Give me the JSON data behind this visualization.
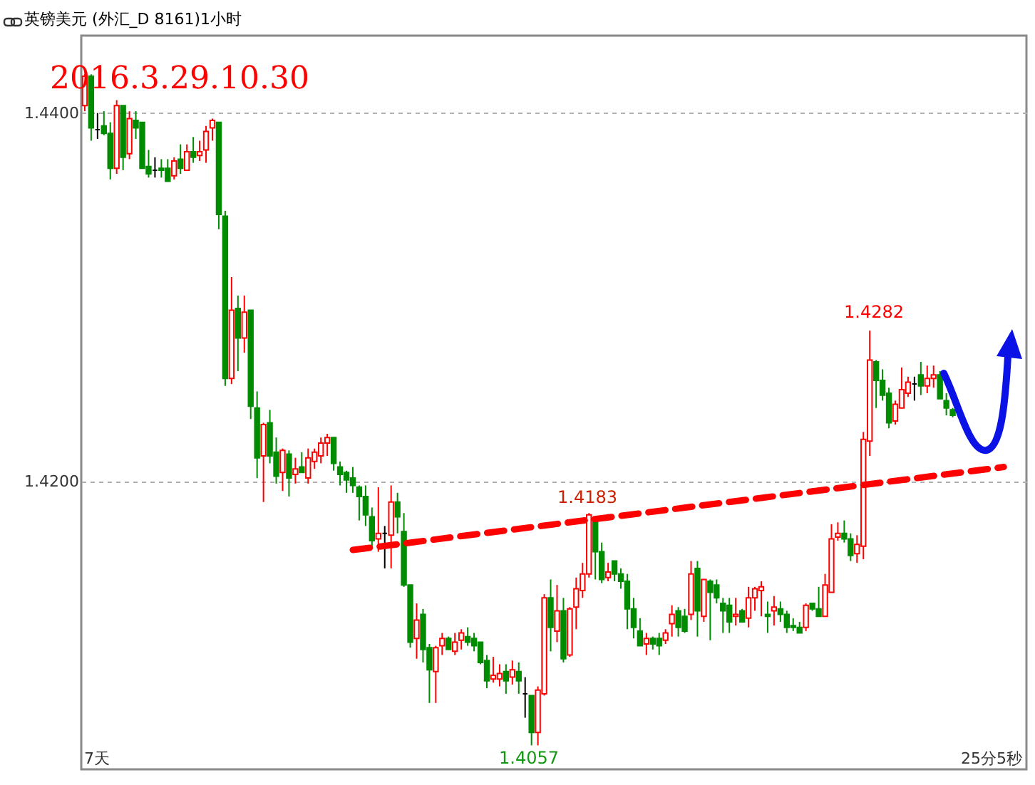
{
  "chart_data": {
    "type": "candlestick",
    "title": "英镑美元 (外汇_D 8161)1小时",
    "categories": [
      null,
      null,
      null,
      null,
      null,
      null,
      null,
      null,
      null,
      null,
      null,
      null,
      null,
      null,
      null,
      null,
      null,
      null,
      null,
      null,
      null,
      null,
      null,
      null,
      null,
      null,
      null,
      null,
      null,
      null,
      null,
      null,
      null,
      null,
      null,
      null,
      null,
      null,
      null,
      null,
      null,
      null,
      null,
      null,
      null,
      null,
      null,
      null,
      null,
      null,
      null,
      null,
      null,
      null,
      null,
      null,
      null,
      null,
      null,
      null,
      null,
      null,
      null,
      null,
      null,
      null,
      null,
      null,
      null,
      null,
      null,
      null,
      null,
      null,
      null,
      null,
      null,
      null,
      null,
      null,
      null,
      null,
      null,
      null,
      null,
      null,
      null,
      null,
      null,
      null,
      null,
      null,
      null,
      null,
      null,
      null,
      null,
      null,
      null,
      null,
      null,
      null,
      null,
      null,
      null,
      null,
      null,
      null,
      null,
      null,
      null,
      null,
      null,
      null,
      null,
      null,
      null,
      null,
      null,
      null,
      null,
      null,
      null,
      null,
      null,
      null,
      null,
      null,
      null,
      null,
      null,
      null,
      null,
      null,
      null,
      null,
      null,
      null,
      null,
      null,
      null,
      null,
      null,
      null,
      null,
      null,
      null,
      null
    ],
    "ohlc": [
      [
        1.4404,
        1.4421,
        1.4401,
        1.442
      ],
      [
        1.442,
        1.4421,
        1.4385,
        1.4392
      ],
      [
        1.4391,
        1.44,
        1.4386,
        1.4391
      ],
      [
        1.4393,
        1.4401,
        1.4388,
        1.4389
      ],
      [
        1.4389,
        1.4395,
        1.4364,
        1.437
      ],
      [
        1.437,
        1.4407,
        1.4367,
        1.4404
      ],
      [
        1.4404,
        1.4404,
        1.4369,
        1.4376
      ],
      [
        1.4378,
        1.4401,
        1.4375,
        1.4397
      ],
      [
        1.4396,
        1.4401,
        1.4386,
        1.4392
      ],
      [
        1.4395,
        1.4395,
        1.437,
        1.437
      ],
      [
        1.4371,
        1.438,
        1.4365,
        1.4367
      ],
      [
        1.4369,
        1.4376,
        1.4365,
        1.4369
      ],
      [
        1.437,
        1.4375,
        1.4365,
        1.4369
      ],
      [
        1.437,
        1.4375,
        1.4363,
        1.4363
      ],
      [
        1.4366,
        1.4376,
        1.4364,
        1.4374
      ],
      [
        1.4375,
        1.4383,
        1.4367,
        1.437
      ],
      [
        1.4369,
        1.4383,
        1.4369,
        1.4379
      ],
      [
        1.4379,
        1.4387,
        1.4373,
        1.4376
      ],
      [
        1.4377,
        1.4385,
        1.4374,
        1.4379
      ],
      [
        1.438,
        1.4393,
        1.4373,
        1.439
      ],
      [
        1.4392,
        1.4397,
        1.4385,
        1.4396
      ],
      [
        1.4395,
        1.4395,
        1.4337,
        1.4345
      ],
      [
        1.4344,
        1.4347,
        1.4252,
        1.4256
      ],
      [
        1.4256,
        1.4311,
        1.4253,
        1.4293
      ],
      [
        1.4294,
        1.4301,
        1.426,
        1.4278
      ],
      [
        1.4278,
        1.4301,
        1.427,
        1.4292
      ],
      [
        1.4293,
        1.4293,
        1.4234,
        1.4241
      ],
      [
        1.424,
        1.4249,
        1.4202,
        1.4213
      ],
      [
        1.4214,
        1.4232,
        1.4189,
        1.4231
      ],
      [
        1.4232,
        1.4239,
        1.421,
        1.4214
      ],
      [
        1.4216,
        1.4224,
        1.4199,
        1.4203
      ],
      [
        1.4205,
        1.4218,
        1.4195,
        1.4217
      ],
      [
        1.4215,
        1.4217,
        1.4192,
        1.4202
      ],
      [
        1.4204,
        1.4213,
        1.4199,
        1.4207
      ],
      [
        1.4208,
        1.4216,
        1.4205,
        1.4205
      ],
      [
        1.4202,
        1.4218,
        1.4199,
        1.4213
      ],
      [
        1.4211,
        1.4218,
        1.4207,
        1.4216
      ],
      [
        1.4214,
        1.4224,
        1.421,
        1.4221
      ],
      [
        1.4221,
        1.4226,
        1.4214,
        1.4224
      ],
      [
        1.4224,
        1.4224,
        1.4206,
        1.421
      ],
      [
        1.4208,
        1.4211,
        1.4198,
        1.4204
      ],
      [
        1.4205,
        1.4206,
        1.4194,
        1.4201
      ],
      [
        1.4202,
        1.4208,
        1.4194,
        1.4198
      ],
      [
        1.4197,
        1.4198,
        1.4179,
        1.4192
      ],
      [
        1.4192,
        1.4198,
        1.4176,
        1.4182
      ],
      [
        1.4181,
        1.4186,
        1.4164,
        1.4168
      ],
      [
        1.4169,
        1.4197,
        1.4162,
        1.4172
      ],
      [
        1.4172,
        1.4176,
        1.4153,
        1.4172
      ],
      [
        1.4171,
        1.4198,
        1.4153,
        1.4189
      ],
      [
        1.4189,
        1.4194,
        1.4172,
        1.4181
      ],
      [
        1.4173,
        1.4183,
        1.4143,
        1.4144
      ],
      [
        1.4144,
        1.4144,
        1.411,
        1.4113
      ],
      [
        1.4115,
        1.4134,
        1.4104,
        1.4125
      ],
      [
        1.4128,
        1.4131,
        1.4102,
        1.4109
      ],
      [
        1.411,
        1.4112,
        1.408,
        1.4098
      ],
      [
        1.4097,
        1.4111,
        1.408,
        1.411
      ],
      [
        1.4111,
        1.4118,
        1.4106,
        1.4115
      ],
      [
        1.4115,
        1.4116,
        1.4109,
        1.4109
      ],
      [
        1.4108,
        1.4118,
        1.4106,
        1.4113
      ],
      [
        1.4114,
        1.412,
        1.4109,
        1.4118
      ],
      [
        1.4116,
        1.4121,
        1.4111,
        1.4113
      ],
      [
        1.4115,
        1.4118,
        1.4108,
        1.4111
      ],
      [
        1.4113,
        1.4113,
        1.4101,
        1.4102
      ],
      [
        1.4103,
        1.4106,
        1.4088,
        1.4092
      ],
      [
        1.4093,
        1.4105,
        1.4091,
        1.4095
      ],
      [
        1.4093,
        1.4101,
        1.4089,
        1.4096
      ],
      [
        1.4097,
        1.4101,
        1.4085,
        1.4092
      ],
      [
        1.4094,
        1.4103,
        1.409,
        1.4098
      ],
      [
        1.4097,
        1.4102,
        1.4085,
        1.4092
      ],
      [
        1.4085,
        1.4094,
        1.4072,
        1.4085
      ],
      [
        1.4084,
        1.4084,
        1.4057,
        1.4064
      ],
      [
        1.4064,
        1.4089,
        1.4057,
        1.4087
      ],
      [
        1.4085,
        1.4139,
        1.4084,
        1.4137
      ],
      [
        1.4137,
        1.4147,
        1.4108,
        1.4121
      ],
      [
        1.4119,
        1.4144,
        1.4113,
        1.413
      ],
      [
        1.413,
        1.4137,
        1.4102,
        1.4104
      ],
      [
        1.4106,
        1.4132,
        1.4105,
        1.4131
      ],
      [
        1.4132,
        1.4148,
        1.412,
        1.4142
      ],
      [
        1.4141,
        1.4156,
        1.4137,
        1.415
      ],
      [
        1.415,
        1.4183,
        1.4148,
        1.4182
      ],
      [
        1.4179,
        1.4181,
        1.4147,
        1.4162
      ],
      [
        1.4162,
        1.4167,
        1.4145,
        1.4147
      ],
      [
        1.4148,
        1.4156,
        1.4146,
        1.4151
      ],
      [
        1.4157,
        1.4157,
        1.4146,
        1.415
      ],
      [
        1.415,
        1.4153,
        1.4142,
        1.4146
      ],
      [
        1.4146,
        1.415,
        1.412,
        1.4131
      ],
      [
        1.4131,
        1.4137,
        1.4115,
        1.4121
      ],
      [
        1.4119,
        1.4126,
        1.4111,
        1.4111
      ],
      [
        1.4112,
        1.4118,
        1.4106,
        1.4115
      ],
      [
        1.4115,
        1.4116,
        1.4109,
        1.4112
      ],
      [
        1.4115,
        1.4118,
        1.4106,
        1.4111
      ],
      [
        1.4114,
        1.412,
        1.4112,
        1.4118
      ],
      [
        1.4123,
        1.4133,
        1.4116,
        1.4128
      ],
      [
        1.413,
        1.4132,
        1.4116,
        1.4121
      ],
      [
        1.4127,
        1.4131,
        1.4118,
        1.4119
      ],
      [
        1.4128,
        1.4157,
        1.4125,
        1.415
      ],
      [
        1.4153,
        1.4157,
        1.4116,
        1.413
      ],
      [
        1.4127,
        1.4147,
        1.4124,
        1.4147
      ],
      [
        1.4146,
        1.4147,
        1.4114,
        1.414
      ],
      [
        1.4144,
        1.4147,
        1.4134,
        1.4137
      ],
      [
        1.4134,
        1.4137,
        1.4118,
        1.413
      ],
      [
        1.4133,
        1.4137,
        1.4118,
        1.4124
      ],
      [
        1.4127,
        1.4137,
        1.4122,
        1.4128
      ],
      [
        1.413,
        1.4131,
        1.4124,
        1.4124
      ],
      [
        1.4126,
        1.4143,
        1.4121,
        1.4137
      ],
      [
        1.4137,
        1.4143,
        1.413,
        1.4142
      ],
      [
        1.4141,
        1.4146,
        1.4127,
        1.4143
      ],
      [
        1.4128,
        1.4135,
        1.4118,
        1.4127
      ],
      [
        1.413,
        1.4138,
        1.4122,
        1.4132
      ],
      [
        1.4131,
        1.4135,
        1.4124,
        1.4128
      ],
      [
        1.4128,
        1.413,
        1.4118,
        1.4121
      ],
      [
        1.4122,
        1.4126,
        1.4119,
        1.4121
      ],
      [
        1.4121,
        1.4124,
        1.4118,
        1.4118
      ],
      [
        1.4121,
        1.4134,
        1.4119,
        1.4133
      ],
      [
        1.4134,
        1.4134,
        1.413,
        1.4131
      ],
      [
        1.4131,
        1.4143,
        1.4127,
        1.4127
      ],
      [
        1.4127,
        1.415,
        1.4127,
        1.4144
      ],
      [
        1.414,
        1.4177,
        1.414,
        1.4169
      ],
      [
        1.417,
        1.4178,
        1.4168,
        1.4172
      ],
      [
        1.4172,
        1.4179,
        1.4167,
        1.4169
      ],
      [
        1.4169,
        1.4172,
        1.4157,
        1.416
      ],
      [
        1.4161,
        1.4171,
        1.4156,
        1.4166
      ],
      [
        1.4165,
        1.4227,
        1.4158,
        1.4223
      ],
      [
        1.4222,
        1.4282,
        1.4214,
        1.4266
      ],
      [
        1.4265,
        1.4266,
        1.424,
        1.4255
      ],
      [
        1.4255,
        1.4261,
        1.4244,
        1.4247
      ],
      [
        1.4248,
        1.4251,
        1.4229,
        1.4232
      ],
      [
        1.4233,
        1.4244,
        1.4231,
        1.4242
      ],
      [
        1.424,
        1.4262,
        1.424,
        1.425
      ],
      [
        1.4248,
        1.4257,
        1.4246,
        1.4254
      ],
      [
        1.4253,
        1.4257,
        1.4244,
        1.4253
      ],
      [
        1.4258,
        1.4265,
        1.4247,
        1.4252
      ],
      [
        1.4252,
        1.4263,
        1.4248,
        1.4256
      ],
      [
        1.4256,
        1.4263,
        1.4251,
        1.4258
      ],
      [
        1.4258,
        1.426,
        1.4245,
        1.4245
      ],
      [
        1.4244,
        1.4248,
        1.4236,
        1.424
      ],
      [
        1.4239,
        1.424,
        1.4235,
        1.4236
      ],
      null,
      null,
      null,
      null,
      null,
      null,
      null,
      null,
      null,
      null,
      null
    ],
    "colors": [
      "#ff0000",
      "#008c00",
      "#000000",
      "#008c00",
      "#008c00",
      "#ff0000",
      "#008c00",
      "#ff0000",
      "#008c00",
      "#008c00",
      "#008c00",
      "#000000",
      "#008c00",
      "#008c00",
      "#ff0000",
      "#008c00",
      "#ff0000",
      "#008c00",
      "#ff0000",
      "#ff0000",
      "#ff0000",
      "#008c00",
      "#008c00",
      "#ff0000",
      "#008c00",
      "#ff0000",
      "#008c00",
      "#008c00",
      "#ff0000",
      "#008c00",
      "#008c00",
      "#ff0000",
      "#008c00",
      "#ff0000",
      "#008c00",
      "#ff0000",
      "#ff0000",
      "#ff0000",
      "#ff0000",
      "#008c00",
      "#008c00",
      "#008c00",
      "#008c00",
      "#008c00",
      "#008c00",
      "#008c00",
      "#ff0000",
      "#000000",
      "#ff0000",
      "#008c00",
      "#008c00",
      "#008c00",
      "#ff0000",
      "#008c00",
      "#008c00",
      "#ff0000",
      "#ff0000",
      "#008c00",
      "#ff0000",
      "#ff0000",
      "#008c00",
      "#008c00",
      "#008c00",
      "#008c00",
      "#ff0000",
      "#ff0000",
      "#008c00",
      "#ff0000",
      "#008c00",
      "#000000",
      "#008c00",
      "#ff0000",
      "#ff0000",
      "#008c00",
      "#ff0000",
      "#008c00",
      "#ff0000",
      "#ff0000",
      "#ff0000",
      "#ff0000",
      "#008c00",
      "#008c00",
      "#ff0000",
      "#008c00",
      "#008c00",
      "#008c00",
      "#008c00",
      "#008c00",
      "#ff0000",
      "#008c00",
      "#008c00",
      "#ff0000",
      "#ff0000",
      "#008c00",
      "#008c00",
      "#ff0000",
      "#008c00",
      "#ff0000",
      "#008c00",
      "#008c00",
      "#008c00",
      "#008c00",
      "#ff0000",
      "#008c00",
      "#ff0000",
      "#ff0000",
      "#ff0000",
      "#008c00",
      "#ff0000",
      "#008c00",
      "#008c00",
      "#008c00",
      "#008c00",
      "#ff0000",
      "#008c00",
      "#008c00",
      "#ff0000",
      "#ff0000",
      "#ff0000",
      "#008c00",
      "#008c00",
      "#ff0000",
      "#ff0000",
      "#ff0000",
      "#008c00",
      "#008c00",
      "#008c00",
      "#ff0000",
      "#ff0000",
      "#ff0000",
      "#000000",
      "#008c00",
      "#ff0000",
      "#ff0000",
      "#008c00",
      "#008c00",
      "#008c00",
      null,
      null,
      null,
      null,
      null,
      null,
      null,
      null,
      null,
      null,
      null
    ],
    "series": [
      {
        "type": "line",
        "color": "#ff0000",
        "line_style": "dashed",
        "values": [
          null,
          null,
          null,
          null,
          null,
          null,
          null,
          null,
          null,
          null,
          null,
          null,
          null,
          null,
          null,
          null,
          null,
          null,
          null,
          null,
          null,
          null,
          null,
          null,
          null,
          null,
          null,
          null,
          null,
          null,
          null,
          null,
          null,
          null,
          null,
          null,
          null,
          null,
          null,
          null,
          null,
          null,
          1.4163,
          null,
          null,
          null,
          null,
          null,
          null,
          null,
          null,
          null,
          null,
          null,
          null,
          null,
          null,
          null,
          null,
          null,
          null,
          null,
          null,
          null,
          null,
          null,
          null,
          null,
          null,
          null,
          null,
          null,
          null,
          null,
          null,
          null,
          null,
          null,
          null,
          null,
          null,
          null,
          null,
          null,
          null,
          null,
          null,
          null,
          null,
          null,
          null,
          null,
          null,
          null,
          null,
          null,
          null,
          null,
          null,
          null,
          null,
          null,
          null,
          null,
          null,
          null,
          null,
          null,
          null,
          null,
          null,
          null,
          null,
          null,
          null,
          null,
          null,
          null,
          null,
          null,
          null,
          null,
          null,
          null,
          null,
          null,
          null,
          null,
          null,
          null,
          null,
          null,
          null,
          null,
          null,
          null,
          null,
          null,
          null,
          null,
          null,
          null,
          null,
          null,
          1.4208,
          null,
          null,
          null
        ]
      }
    ],
    "ylim": [
      1.4044,
      1.4442
    ],
    "yticks": [
      {
        "value": 1.42,
        "label": "1.4200"
      },
      {
        "value": 1.44,
        "label": "1.4400"
      }
    ],
    "grid": "y",
    "tick_labels": "y",
    "annotations": [
      "2016.3.29.10.30",
      "1.4282",
      "1.4183",
      "1.4057",
      "7天",
      "25分5秒"
    ]
  }
}
